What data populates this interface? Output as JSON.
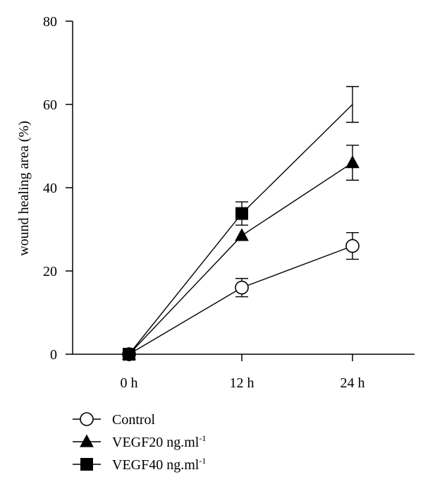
{
  "chart_data": {
    "type": "line",
    "title": "",
    "xlabel": "",
    "ylabel": "wound healing area (%)",
    "categories": [
      "0 h",
      "12 h",
      "24 h"
    ],
    "ylim": [
      0,
      80
    ],
    "yticks": [
      0,
      20,
      40,
      60,
      80
    ],
    "grid": false,
    "legend": {
      "placement": "bottom-left"
    },
    "series": [
      {
        "name": "Control",
        "marker": "circle-open",
        "values": [
          0,
          16,
          26
        ],
        "errors": [
          0,
          2.2,
          3.2
        ]
      },
      {
        "name": "VEGF20 ng.ml-1",
        "name_parts": {
          "text": "VEGF20 ng.ml",
          "sup": "-1"
        },
        "marker": "triangle-filled",
        "values": [
          0,
          28.5,
          46
        ],
        "errors": [
          0,
          0,
          4.2
        ]
      },
      {
        "name": "VEGF40 ng.ml-1",
        "name_parts": {
          "text": "VEGF40 ng.ml",
          "sup": "-1"
        },
        "marker": "square-filled",
        "values": [
          0,
          33.8,
          60
        ],
        "errors": [
          0,
          2.8,
          4.3
        ]
      }
    ],
    "colors": {
      "line": "#000000",
      "marker_fill": "#000000",
      "open_marker_fill": "#ffffff"
    }
  }
}
